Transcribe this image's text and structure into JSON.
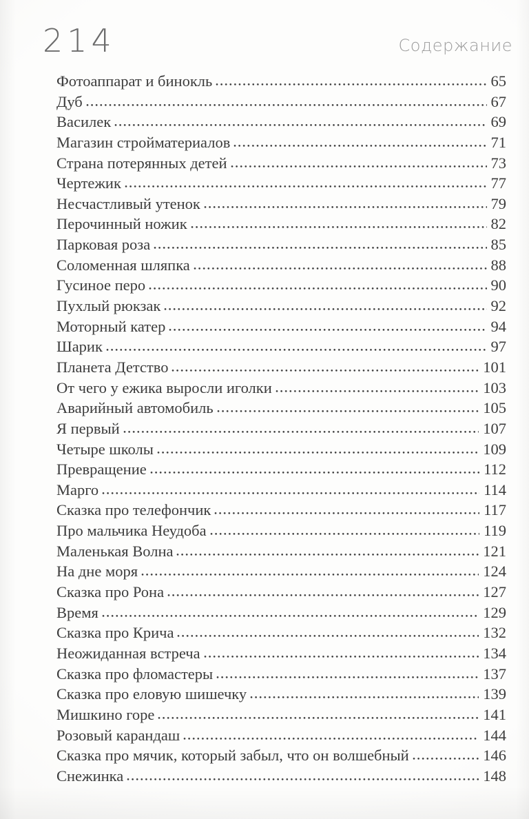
{
  "page": {
    "folio": "214",
    "header_title": "Содержание"
  },
  "colors": {
    "ink": "#3c3c3c",
    "folio": "#6c6c6c",
    "header": "#9b9b9b",
    "paper": "#fdfdfc",
    "paper_edge": "#f1f0ee"
  },
  "toc": {
    "entries": [
      {
        "title": "Фотоаппарат и бинокль",
        "page": "65"
      },
      {
        "title": "Дуб",
        "page": "67"
      },
      {
        "title": "Василек",
        "page": "69"
      },
      {
        "title": "Магазин стройматериалов",
        "page": "71"
      },
      {
        "title": "Страна потерянных детей",
        "page": "73"
      },
      {
        "title": "Чертежик",
        "page": "77"
      },
      {
        "title": "Несчастливый утенок",
        "page": "79"
      },
      {
        "title": "Перочинный ножик",
        "page": "82"
      },
      {
        "title": "Парковая роза",
        "page": "85"
      },
      {
        "title": "Соломенная шляпка",
        "page": "88"
      },
      {
        "title": "Гусиное перо",
        "page": "90"
      },
      {
        "title": "Пухлый рюкзак",
        "page": "92"
      },
      {
        "title": "Моторный катер",
        "page": "94"
      },
      {
        "title": "Шарик",
        "page": "97"
      },
      {
        "title": "Планета Детство",
        "page": "101"
      },
      {
        "title": "От чего у ежика выросли иголки",
        "page": "103"
      },
      {
        "title": "Аварийный автомобиль",
        "page": "105"
      },
      {
        "title": "Я первый",
        "page": "107"
      },
      {
        "title": "Четыре школы",
        "page": "109"
      },
      {
        "title": "Превращение",
        "page": "112"
      },
      {
        "title": "Марго",
        "page": "114"
      },
      {
        "title": "Сказка про телефончик",
        "page": "117"
      },
      {
        "title": "Про мальчика Неудоба",
        "page": "119"
      },
      {
        "title": "Маленькая Волна",
        "page": "121"
      },
      {
        "title": "На дне моря",
        "page": "124"
      },
      {
        "title": "Сказка про Рона",
        "page": "127"
      },
      {
        "title": "Время",
        "page": "129"
      },
      {
        "title": "Сказка про Крича",
        "page": "132"
      },
      {
        "title": "Неожиданная встреча",
        "page": "134"
      },
      {
        "title": "Сказка про фломастеры",
        "page": "137"
      },
      {
        "title": "Сказка про еловую шишечку",
        "page": "139"
      },
      {
        "title": "Мишкино горе",
        "page": "141"
      },
      {
        "title": "Розовый карандаш",
        "page": "144"
      },
      {
        "title": "Сказка про мячик, который забыл, что он волшебный",
        "page": "146"
      },
      {
        "title": "Снежинка",
        "page": "148"
      }
    ]
  }
}
